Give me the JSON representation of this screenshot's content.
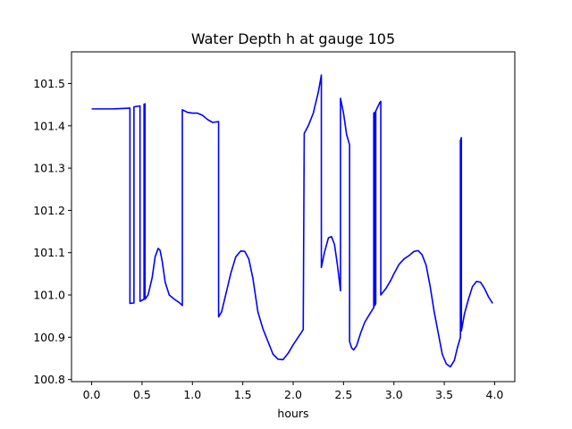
{
  "chart_data": {
    "type": "line",
    "title": "Water Depth h at gauge 105",
    "xlabel": "hours",
    "ylabel": "",
    "xlim": [
      -0.2,
      4.2
    ],
    "ylim": [
      100.795,
      101.575
    ],
    "xticks": [
      0.0,
      0.5,
      1.0,
      1.5,
      2.0,
      2.5,
      3.0,
      3.5,
      4.0
    ],
    "xtick_labels": [
      "0.0",
      "0.5",
      "1.0",
      "1.5",
      "2.0",
      "2.5",
      "3.0",
      "3.5",
      "4.0"
    ],
    "yticks": [
      100.8,
      100.9,
      101.0,
      101.1,
      101.2,
      101.3,
      101.4,
      101.5
    ],
    "ytick_labels": [
      "100.8",
      "100.9",
      "101.0",
      "101.1",
      "101.2",
      "101.3",
      "101.4",
      "101.5"
    ],
    "grid": false,
    "legend": "none",
    "series": [
      {
        "color": "#0000ff",
        "points": [
          [
            0.0,
            101.44
          ],
          [
            0.1,
            101.44
          ],
          [
            0.2,
            101.44
          ],
          [
            0.3,
            101.441
          ],
          [
            0.38,
            101.442
          ],
          [
            0.38,
            100.98
          ],
          [
            0.42,
            100.981
          ],
          [
            0.42,
            101.445
          ],
          [
            0.48,
            101.447
          ],
          [
            0.48,
            100.985
          ],
          [
            0.52,
            100.99
          ],
          [
            0.52,
            101.451
          ],
          [
            0.53,
            101.452
          ],
          [
            0.53,
            100.99
          ],
          [
            0.56,
            101.0
          ],
          [
            0.6,
            101.04
          ],
          [
            0.63,
            101.09
          ],
          [
            0.66,
            101.11
          ],
          [
            0.68,
            101.105
          ],
          [
            0.7,
            101.08
          ],
          [
            0.73,
            101.03
          ],
          [
            0.77,
            101.0
          ],
          [
            0.82,
            100.99
          ],
          [
            0.87,
            100.982
          ],
          [
            0.9,
            100.975
          ],
          [
            0.9,
            101.438
          ],
          [
            0.95,
            101.432
          ],
          [
            1.0,
            101.43
          ],
          [
            1.05,
            101.43
          ],
          [
            1.1,
            101.425
          ],
          [
            1.15,
            101.415
          ],
          [
            1.2,
            101.408
          ],
          [
            1.26,
            101.41
          ],
          [
            1.26,
            100.948
          ],
          [
            1.29,
            100.96
          ],
          [
            1.33,
            101.0
          ],
          [
            1.38,
            101.05
          ],
          [
            1.43,
            101.09
          ],
          [
            1.48,
            101.104
          ],
          [
            1.52,
            101.103
          ],
          [
            1.56,
            101.085
          ],
          [
            1.6,
            101.04
          ],
          [
            1.65,
            100.96
          ],
          [
            1.7,
            100.92
          ],
          [
            1.75,
            100.89
          ],
          [
            1.8,
            100.86
          ],
          [
            1.85,
            100.848
          ],
          [
            1.9,
            100.847
          ],
          [
            1.95,
            100.862
          ],
          [
            2.0,
            100.882
          ],
          [
            2.05,
            100.9
          ],
          [
            2.1,
            100.918
          ],
          [
            2.11,
            101.382
          ],
          [
            2.15,
            101.4
          ],
          [
            2.2,
            101.43
          ],
          [
            2.25,
            101.48
          ],
          [
            2.28,
            101.52
          ],
          [
            2.28,
            101.065
          ],
          [
            2.31,
            101.1
          ],
          [
            2.35,
            101.135
          ],
          [
            2.38,
            101.138
          ],
          [
            2.41,
            101.12
          ],
          [
            2.44,
            101.07
          ],
          [
            2.47,
            101.01
          ],
          [
            2.47,
            101.465
          ],
          [
            2.5,
            101.43
          ],
          [
            2.53,
            101.38
          ],
          [
            2.56,
            101.355
          ],
          [
            2.56,
            100.89
          ],
          [
            2.58,
            100.875
          ],
          [
            2.6,
            100.87
          ],
          [
            2.63,
            100.88
          ],
          [
            2.67,
            100.91
          ],
          [
            2.71,
            100.935
          ],
          [
            2.76,
            100.955
          ],
          [
            2.8,
            100.97
          ],
          [
            2.8,
            101.43
          ],
          [
            2.81,
            101.432
          ],
          [
            2.81,
            100.975
          ],
          [
            2.82,
            100.98
          ],
          [
            2.82,
            101.435
          ],
          [
            2.86,
            101.455
          ],
          [
            2.87,
            101.458
          ],
          [
            2.87,
            101.0
          ],
          [
            2.92,
            101.015
          ],
          [
            2.97,
            101.035
          ],
          [
            3.0,
            101.05
          ],
          [
            3.05,
            101.072
          ],
          [
            3.1,
            101.085
          ],
          [
            3.15,
            101.093
          ],
          [
            3.2,
            101.103
          ],
          [
            3.24,
            101.105
          ],
          [
            3.28,
            101.095
          ],
          [
            3.32,
            101.07
          ],
          [
            3.36,
            101.02
          ],
          [
            3.4,
            100.96
          ],
          [
            3.44,
            100.91
          ],
          [
            3.48,
            100.86
          ],
          [
            3.52,
            100.837
          ],
          [
            3.56,
            100.83
          ],
          [
            3.6,
            100.845
          ],
          [
            3.63,
            100.875
          ],
          [
            3.66,
            100.9
          ],
          [
            3.66,
            101.365
          ],
          [
            3.67,
            101.372
          ],
          [
            3.67,
            100.915
          ],
          [
            3.7,
            100.955
          ],
          [
            3.74,
            100.99
          ],
          [
            3.78,
            101.02
          ],
          [
            3.82,
            101.032
          ],
          [
            3.86,
            101.03
          ],
          [
            3.9,
            101.015
          ],
          [
            3.94,
            100.995
          ],
          [
            3.98,
            100.98
          ]
        ]
      }
    ]
  }
}
